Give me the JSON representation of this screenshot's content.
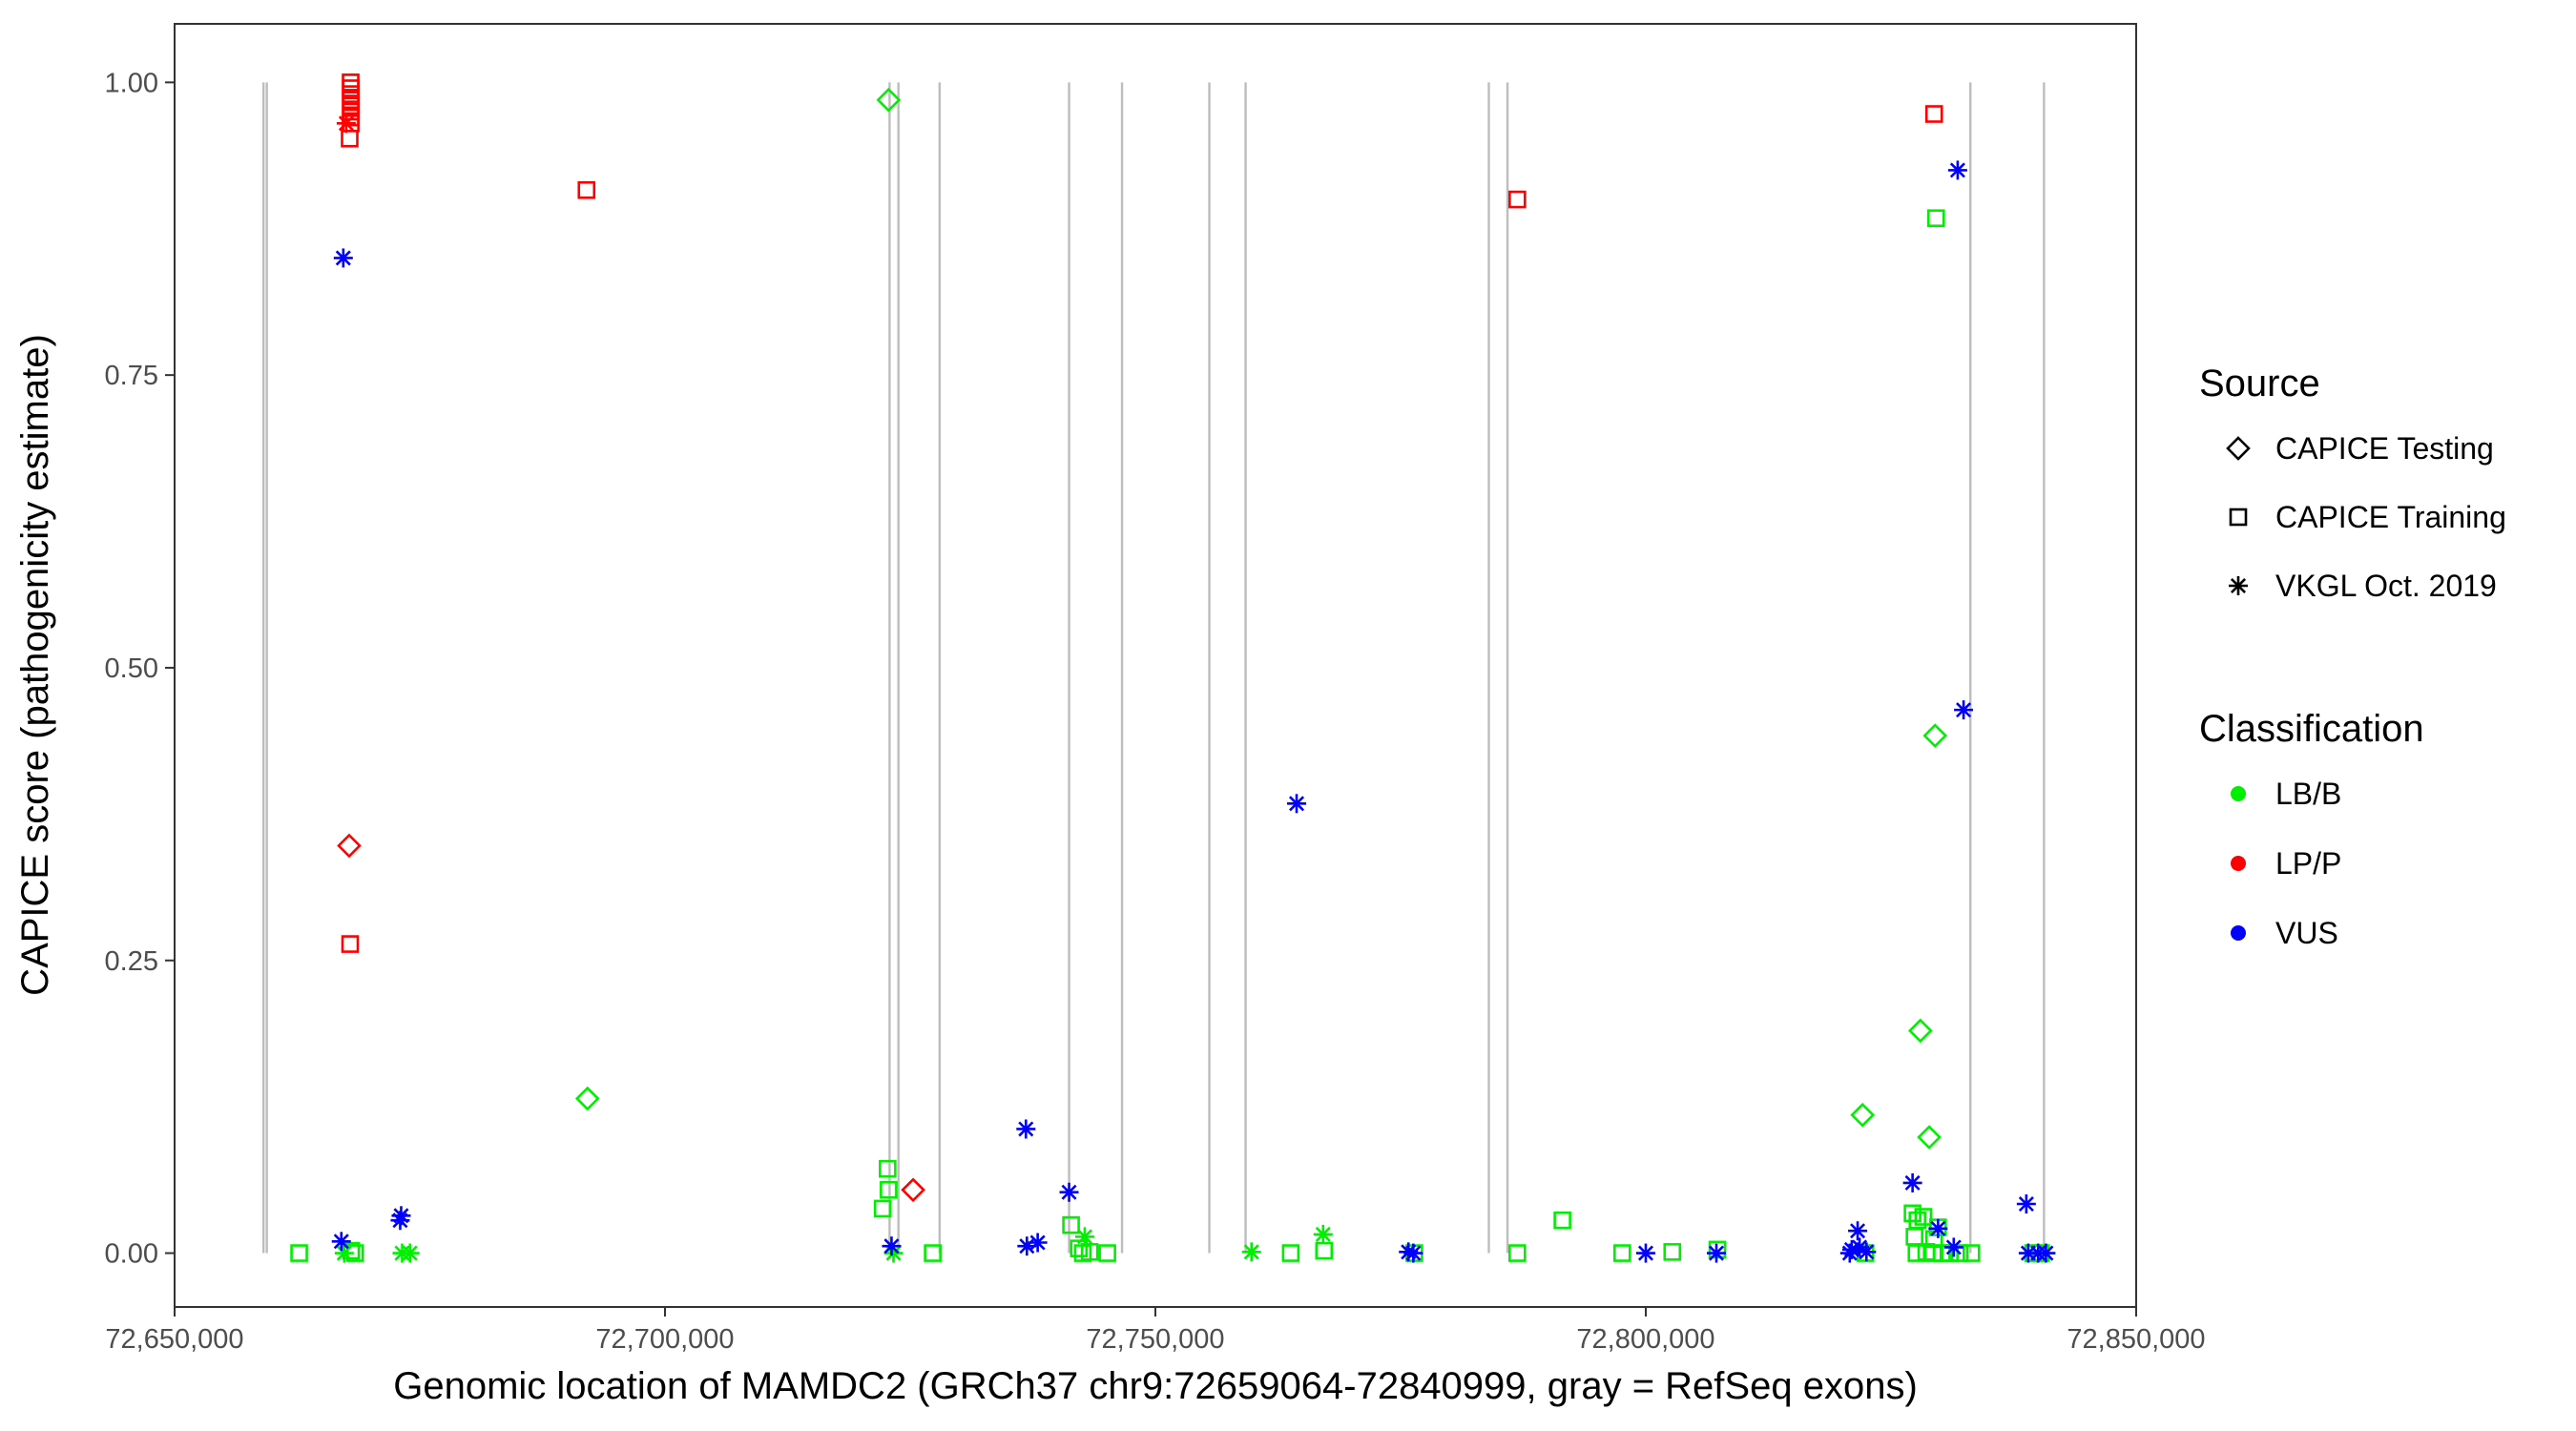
{
  "chart_data": {
    "type": "scatter",
    "title": "",
    "xlabel": "Genomic location of MAMDC2 (GRCh37 chr9:72659064-72840999, gray = RefSeq exons)",
    "ylabel": "CAPICE score (pathogenicity estimate)",
    "xlim": [
      72650000,
      72850000
    ],
    "ylim": [
      -0.046,
      1.05
    ],
    "x_ticks": [
      72650000,
      72700000,
      72750000,
      72800000,
      72850000
    ],
    "x_tick_labels": [
      "72,650,000",
      "72,700,000",
      "72,750,000",
      "72,800,000",
      "72,850,000"
    ],
    "y_ticks": [
      0,
      0.25,
      0.5,
      0.75,
      1
    ],
    "y_tick_labels": [
      "0.00",
      "0.25",
      "0.50",
      "0.75",
      "1.00"
    ],
    "grid": false,
    "legend_placement": "right",
    "exons": [
      72659064,
      72659400,
      72722900,
      72723800,
      72728000,
      72741200,
      72746600,
      72755500,
      72759200,
      72784000,
      72785900,
      72833100,
      72840600
    ],
    "exon_color": "#bdbdbd",
    "legend": {
      "source_title": "Source",
      "source_items": [
        {
          "label": "CAPICE Testing",
          "shape": "diamond"
        },
        {
          "label": "CAPICE Training",
          "shape": "square"
        },
        {
          "label": "VKGL Oct. 2019",
          "shape": "asterisk"
        }
      ],
      "class_title": "Classification",
      "class_items": [
        {
          "label": "LB/B",
          "color": "#00ee00"
        },
        {
          "label": "LP/P",
          "color": "#ff0000"
        },
        {
          "label": "VUS",
          "color": "#0000ff"
        }
      ]
    },
    "series": [
      {
        "name": "LP/P",
        "color": "#ff0000",
        "points": [
          {
            "x": 72667950,
            "y": 1.0,
            "source": "CAPICE Training"
          },
          {
            "x": 72667960,
            "y": 0.995,
            "source": "CAPICE Training"
          },
          {
            "x": 72667970,
            "y": 0.99,
            "source": "CAPICE Training"
          },
          {
            "x": 72667950,
            "y": 0.985,
            "source": "CAPICE Training"
          },
          {
            "x": 72667975,
            "y": 0.98,
            "source": "CAPICE Training"
          },
          {
            "x": 72667965,
            "y": 0.975,
            "source": "CAPICE Training"
          },
          {
            "x": 72667950,
            "y": 0.97,
            "source": "CAPICE Training"
          },
          {
            "x": 72667960,
            "y": 0.965,
            "source": "CAPICE Training"
          },
          {
            "x": 72667850,
            "y": 0.952,
            "source": "CAPICE Training"
          },
          {
            "x": 72667500,
            "y": 0.965,
            "source": "VKGL Oct. 2019"
          },
          {
            "x": 72692000,
            "y": 0.908,
            "source": "CAPICE Training"
          },
          {
            "x": 72786900,
            "y": 0.9,
            "source": "CAPICE Training"
          },
          {
            "x": 72829400,
            "y": 0.973,
            "source": "CAPICE Training"
          },
          {
            "x": 72667800,
            "y": 0.348,
            "source": "CAPICE Testing"
          },
          {
            "x": 72667900,
            "y": 0.264,
            "source": "CAPICE Training"
          },
          {
            "x": 72725300,
            "y": 0.054,
            "source": "CAPICE Testing"
          }
        ]
      },
      {
        "name": "LB/B",
        "color": "#00ee00",
        "points": [
          {
            "x": 72722800,
            "y": 0.985,
            "source": "CAPICE Testing"
          },
          {
            "x": 72829600,
            "y": 0.884,
            "source": "CAPICE Training"
          },
          {
            "x": 72829500,
            "y": 0.442,
            "source": "CAPICE Testing"
          },
          {
            "x": 72828000,
            "y": 0.19,
            "source": "CAPICE Testing"
          },
          {
            "x": 72692100,
            "y": 0.132,
            "source": "CAPICE Testing"
          },
          {
            "x": 72822100,
            "y": 0.118,
            "source": "CAPICE Testing"
          },
          {
            "x": 72828900,
            "y": 0.099,
            "source": "CAPICE Testing"
          },
          {
            "x": 72722700,
            "y": 0.072,
            "source": "CAPICE Training"
          },
          {
            "x": 72722800,
            "y": 0.054,
            "source": "CAPICE Training"
          },
          {
            "x": 72722200,
            "y": 0.038,
            "source": "CAPICE Training"
          },
          {
            "x": 72791500,
            "y": 0.028,
            "source": "CAPICE Training"
          },
          {
            "x": 72741400,
            "y": 0.024,
            "source": "CAPICE Training"
          },
          {
            "x": 72767100,
            "y": 0.016,
            "source": "VKGL Oct. 2019"
          },
          {
            "x": 72742800,
            "y": 0.014,
            "source": "VKGL Oct. 2019"
          },
          {
            "x": 72827200,
            "y": 0.034,
            "source": "CAPICE Training"
          },
          {
            "x": 72827700,
            "y": 0.028,
            "source": "CAPICE Training"
          },
          {
            "x": 72828300,
            "y": 0.031,
            "source": "CAPICE Training"
          },
          {
            "x": 72827400,
            "y": 0.014,
            "source": "CAPICE Training"
          },
          {
            "x": 72829800,
            "y": 0.022,
            "source": "CAPICE Training"
          },
          {
            "x": 72829400,
            "y": 0.012,
            "source": "CAPICE Training"
          },
          {
            "x": 72662700,
            "y": 0.0,
            "source": "CAPICE Training"
          },
          {
            "x": 72668000,
            "y": 0.002,
            "source": "CAPICE Training"
          },
          {
            "x": 72668400,
            "y": 0.0,
            "source": "CAPICE Training"
          },
          {
            "x": 72667300,
            "y": 0.0,
            "source": "VKGL Oct. 2019"
          },
          {
            "x": 72673200,
            "y": 0.0,
            "source": "VKGL Oct. 2019"
          },
          {
            "x": 72674000,
            "y": 0.0,
            "source": "VKGL Oct. 2019"
          },
          {
            "x": 72723300,
            "y": 0.0,
            "source": "VKGL Oct. 2019"
          },
          {
            "x": 72727300,
            "y": 0.0,
            "source": "CAPICE Training"
          },
          {
            "x": 72742200,
            "y": 0.004,
            "source": "CAPICE Training"
          },
          {
            "x": 72742600,
            "y": 0.0,
            "source": "CAPICE Training"
          },
          {
            "x": 72743300,
            "y": 0.001,
            "source": "CAPICE Training"
          },
          {
            "x": 72745100,
            "y": 0.0,
            "source": "CAPICE Training"
          },
          {
            "x": 72759800,
            "y": 0.001,
            "source": "VKGL Oct. 2019"
          },
          {
            "x": 72763800,
            "y": 0.0,
            "source": "CAPICE Training"
          },
          {
            "x": 72767200,
            "y": 0.002,
            "source": "CAPICE Training"
          },
          {
            "x": 72776400,
            "y": 0.0,
            "source": "CAPICE Training"
          },
          {
            "x": 72786900,
            "y": 0.0,
            "source": "CAPICE Training"
          },
          {
            "x": 72797600,
            "y": 0.0,
            "source": "CAPICE Training"
          },
          {
            "x": 72802700,
            "y": 0.001,
            "source": "CAPICE Training"
          },
          {
            "x": 72807300,
            "y": 0.003,
            "source": "CAPICE Training"
          },
          {
            "x": 72822400,
            "y": 0.0,
            "source": "CAPICE Training"
          },
          {
            "x": 72827600,
            "y": 0.0,
            "source": "CAPICE Training"
          },
          {
            "x": 72828600,
            "y": 0.001,
            "source": "CAPICE Training"
          },
          {
            "x": 72829300,
            "y": 0.0,
            "source": "CAPICE Training"
          },
          {
            "x": 72830200,
            "y": 0.0,
            "source": "CAPICE Training"
          },
          {
            "x": 72831000,
            "y": 0.0,
            "source": "CAPICE Training"
          },
          {
            "x": 72832000,
            "y": 0.0,
            "source": "CAPICE Training"
          },
          {
            "x": 72833200,
            "y": 0.0,
            "source": "CAPICE Training"
          },
          {
            "x": 72839500,
            "y": 0.0,
            "source": "CAPICE Training"
          },
          {
            "x": 72840300,
            "y": 0.0,
            "source": "CAPICE Training"
          }
        ]
      },
      {
        "name": "VUS",
        "color": "#0000ff",
        "points": [
          {
            "x": 72831800,
            "y": 0.925,
            "source": "VKGL Oct. 2019"
          },
          {
            "x": 72667200,
            "y": 0.85,
            "source": "VKGL Oct. 2019"
          },
          {
            "x": 72832400,
            "y": 0.464,
            "source": "VKGL Oct. 2019"
          },
          {
            "x": 72764400,
            "y": 0.384,
            "source": "VKGL Oct. 2019"
          },
          {
            "x": 72736800,
            "y": 0.106,
            "source": "VKGL Oct. 2019"
          },
          {
            "x": 72827200,
            "y": 0.06,
            "source": "VKGL Oct. 2019"
          },
          {
            "x": 72741200,
            "y": 0.052,
            "source": "VKGL Oct. 2019"
          },
          {
            "x": 72838800,
            "y": 0.042,
            "source": "VKGL Oct. 2019"
          },
          {
            "x": 72673100,
            "y": 0.032,
            "source": "VKGL Oct. 2019"
          },
          {
            "x": 72673000,
            "y": 0.028,
            "source": "VKGL Oct. 2019"
          },
          {
            "x": 72821600,
            "y": 0.019,
            "source": "VKGL Oct. 2019"
          },
          {
            "x": 72829800,
            "y": 0.021,
            "source": "VKGL Oct. 2019"
          },
          {
            "x": 72667000,
            "y": 0.01,
            "source": "VKGL Oct. 2019"
          },
          {
            "x": 72723100,
            "y": 0.006,
            "source": "VKGL Oct. 2019"
          },
          {
            "x": 72736900,
            "y": 0.006,
            "source": "VKGL Oct. 2019"
          },
          {
            "x": 72738000,
            "y": 0.009,
            "source": "VKGL Oct. 2019"
          },
          {
            "x": 72821000,
            "y": 0.003,
            "source": "VKGL Oct. 2019"
          },
          {
            "x": 72821800,
            "y": 0.005,
            "source": "VKGL Oct. 2019"
          },
          {
            "x": 72831400,
            "y": 0.005,
            "source": "VKGL Oct. 2019"
          },
          {
            "x": 72775800,
            "y": 0.001,
            "source": "VKGL Oct. 2019"
          },
          {
            "x": 72776300,
            "y": 0.0,
            "source": "VKGL Oct. 2019"
          },
          {
            "x": 72800000,
            "y": 0.0,
            "source": "VKGL Oct. 2019"
          },
          {
            "x": 72807200,
            "y": 0.0,
            "source": "VKGL Oct. 2019"
          },
          {
            "x": 72820800,
            "y": 0.0,
            "source": "VKGL Oct. 2019"
          },
          {
            "x": 72822500,
            "y": 0.001,
            "source": "VKGL Oct. 2019"
          },
          {
            "x": 72839000,
            "y": 0.0,
            "source": "VKGL Oct. 2019"
          },
          {
            "x": 72840000,
            "y": 0.0,
            "source": "VKGL Oct. 2019"
          },
          {
            "x": 72840800,
            "y": 0.0,
            "source": "VKGL Oct. 2019"
          }
        ]
      }
    ]
  }
}
